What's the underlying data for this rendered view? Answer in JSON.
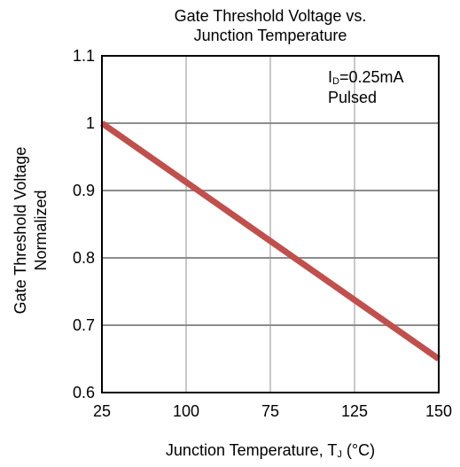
{
  "chart_data": {
    "type": "line",
    "title_lines": [
      "Gate Threshold  Voltage vs.",
      "Junction Temperature"
    ],
    "ylabel_lines": [
      "Gate Threshold  Voltage",
      "Normalized"
    ],
    "xlabel": {
      "main": "Junction Temperature, T",
      "sub": "J",
      "unit": " (°C)"
    },
    "annotation": {
      "line1_main": "I",
      "line1_sub": "D",
      "line1_rest": "=0.25mA",
      "line2": "Pulsed"
    },
    "x_ticks": [
      "25",
      "100",
      "75",
      "125",
      "150"
    ],
    "y_ticks": [
      "1.1",
      "1",
      "0.9",
      "0.8",
      "0.7",
      "0.6"
    ],
    "ylim": [
      0.6,
      1.1
    ],
    "xlim": [
      25,
      150
    ],
    "grid": true,
    "series": [
      {
        "x": [
          25,
          150
        ],
        "y": [
          1.0,
          0.65
        ]
      }
    ],
    "colors": {
      "series": "#c0504d",
      "vgrid": "#c8c8c8",
      "hgrid": "#8c8c8c",
      "axis": "#000000"
    }
  }
}
